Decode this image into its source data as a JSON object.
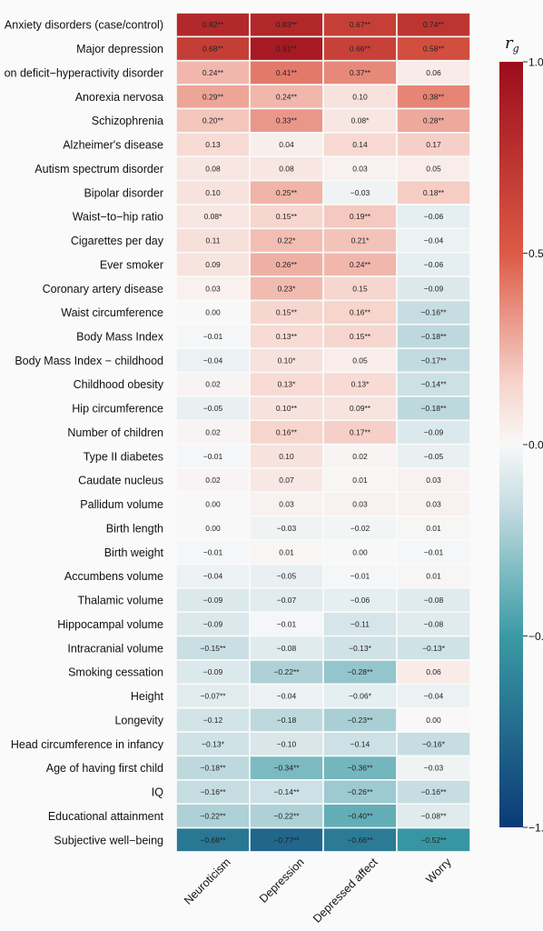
{
  "chart_data": {
    "type": "heatmap",
    "legend_title": "r",
    "legend_title_sub": "g",
    "legend_range": [
      -1,
      1
    ],
    "legend_ticks": [
      "1.0",
      "0.5",
      "0.0",
      "−0.",
      "−1."
    ],
    "columns": [
      "Neuroticism",
      "Depression",
      "Depressed affect",
      "Worry"
    ],
    "rows": [
      {
        "label": "Anxiety disorders (case/control)",
        "values": [
          0.82,
          0.83,
          0.67,
          0.74
        ],
        "text": [
          "0.82**",
          "0.83**",
          "0.67**",
          "0.74**"
        ]
      },
      {
        "label": "Major depression",
        "values": [
          0.68,
          0.91,
          0.66,
          0.58
        ],
        "text": [
          "0.68**",
          "0.91**",
          "0.66**",
          "0.58**"
        ]
      },
      {
        "label": "on deficit−hyperactivity disorder",
        "values": [
          0.24,
          0.41,
          0.37,
          0.06
        ],
        "text": [
          "0.24**",
          "0.41**",
          "0.37**",
          "0.06"
        ]
      },
      {
        "label": "Anorexia nervosa",
        "values": [
          0.29,
          0.24,
          0.1,
          0.38
        ],
        "text": [
          "0.29**",
          "0.24**",
          "0.10",
          "0.38**"
        ]
      },
      {
        "label": "Schizophrenia",
        "values": [
          0.2,
          0.33,
          0.08,
          0.28
        ],
        "text": [
          "0.20**",
          "0.33**",
          "0.08*",
          "0.28**"
        ]
      },
      {
        "label": "Alzheimer's disease",
        "values": [
          0.13,
          0.04,
          0.14,
          0.17
        ],
        "text": [
          "0.13",
          "0.04",
          "0.14",
          "0.17"
        ]
      },
      {
        "label": "Autism spectrum disorder",
        "values": [
          0.08,
          0.08,
          0.03,
          0.05
        ],
        "text": [
          "0.08",
          "0.08",
          "0.03",
          "0.05"
        ]
      },
      {
        "label": "Bipolar disorder",
        "values": [
          0.1,
          0.25,
          -0.03,
          0.18
        ],
        "text": [
          "0.10",
          "0.25**",
          "−0.03",
          "0.18**"
        ]
      },
      {
        "label": "Waist−to−hip ratio",
        "values": [
          0.08,
          0.15,
          0.19,
          -0.06
        ],
        "text": [
          "0.08*",
          "0.15**",
          "0.19**",
          "−0.06"
        ]
      },
      {
        "label": "Cigarettes per day",
        "values": [
          0.11,
          0.22,
          0.21,
          -0.04
        ],
        "text": [
          "0.11",
          "0.22*",
          "0.21*",
          "−0.04"
        ]
      },
      {
        "label": "Ever smoker",
        "values": [
          0.09,
          0.26,
          0.24,
          -0.06
        ],
        "text": [
          "0.09",
          "0.26**",
          "0.24**",
          "−0.06"
        ]
      },
      {
        "label": "Coronary artery disease",
        "values": [
          0.03,
          0.23,
          0.15,
          -0.09
        ],
        "text": [
          "0.03",
          "0.23*",
          "0.15",
          "−0.09"
        ]
      },
      {
        "label": "Waist circumference",
        "values": [
          0.0,
          0.15,
          0.16,
          -0.16
        ],
        "text": [
          "0.00",
          "0.15**",
          "0.16**",
          "−0.16**"
        ]
      },
      {
        "label": "Body Mass Index",
        "values": [
          -0.01,
          0.13,
          0.15,
          -0.18
        ],
        "text": [
          "−0.01",
          "0.13**",
          "0.15**",
          "−0.18**"
        ]
      },
      {
        "label": "Body Mass Index − childhood",
        "values": [
          -0.04,
          0.1,
          0.05,
          -0.17
        ],
        "text": [
          "−0.04",
          "0.10*",
          "0.05",
          "−0.17**"
        ]
      },
      {
        "label": "Childhood obesity",
        "values": [
          0.02,
          0.13,
          0.13,
          -0.14
        ],
        "text": [
          "0.02",
          "0.13*",
          "0.13*",
          "−0.14**"
        ]
      },
      {
        "label": "Hip circumference",
        "values": [
          -0.05,
          0.1,
          0.09,
          -0.18
        ],
        "text": [
          "−0.05",
          "0.10**",
          "0.09**",
          "−0.18**"
        ]
      },
      {
        "label": "Number of children",
        "values": [
          0.02,
          0.16,
          0.17,
          -0.09
        ],
        "text": [
          "0.02",
          "0.16**",
          "0.17**",
          "−0.09"
        ]
      },
      {
        "label": "Type II diabetes",
        "values": [
          -0.01,
          0.1,
          0.02,
          -0.05
        ],
        "text": [
          "−0.01",
          "0.10",
          "0.02",
          "−0.05"
        ]
      },
      {
        "label": "Caudate nucleus",
        "values": [
          0.02,
          0.07,
          0.01,
          0.03
        ],
        "text": [
          "0.02",
          "0.07",
          "0.01",
          "0.03"
        ]
      },
      {
        "label": "Pallidum volume",
        "values": [
          0.0,
          0.03,
          0.03,
          0.03
        ],
        "text": [
          "0.00",
          "0.03",
          "0.03",
          "0.03"
        ]
      },
      {
        "label": "Birth length",
        "values": [
          0.0,
          -0.03,
          -0.02,
          0.01
        ],
        "text": [
          "0.00",
          "−0.03",
          "−0.02",
          "0.01"
        ]
      },
      {
        "label": "Birth weight",
        "values": [
          -0.01,
          0.01,
          0.0,
          -0.01
        ],
        "text": [
          "−0.01",
          "0.01",
          "0.00",
          "−0.01"
        ]
      },
      {
        "label": "Accumbens volume",
        "values": [
          -0.04,
          -0.05,
          -0.01,
          0.01
        ],
        "text": [
          "−0.04",
          "−0.05",
          "−0.01",
          "0.01"
        ]
      },
      {
        "label": "Thalamic volume",
        "values": [
          -0.09,
          -0.07,
          -0.06,
          -0.08
        ],
        "text": [
          "−0.09",
          "−0.07",
          "−0.06",
          "−0.08"
        ]
      },
      {
        "label": "Hippocampal volume",
        "values": [
          -0.09,
          -0.01,
          -0.11,
          -0.08
        ],
        "text": [
          "−0.09",
          "−0.01",
          "−0.11",
          "−0.08"
        ]
      },
      {
        "label": "Intracranial volume",
        "values": [
          -0.15,
          -0.08,
          -0.13,
          -0.13
        ],
        "text": [
          "−0.15**",
          "−0.08",
          "−0.13*",
          "−0.13*"
        ]
      },
      {
        "label": "Smoking cessation",
        "values": [
          -0.09,
          -0.22,
          -0.28,
          0.06
        ],
        "text": [
          "−0.09",
          "−0.22**",
          "−0.28**",
          "0.06"
        ]
      },
      {
        "label": "Height",
        "values": [
          -0.07,
          -0.04,
          -0.06,
          -0.04
        ],
        "text": [
          "−0.07**",
          "−0.04",
          "−0.06*",
          "−0.04"
        ]
      },
      {
        "label": "Longevity",
        "values": [
          -0.12,
          -0.18,
          -0.23,
          0.0
        ],
        "text": [
          "−0.12",
          "−0.18",
          "−0.23**",
          "0.00"
        ]
      },
      {
        "label": "Head circumference in infancy",
        "values": [
          -0.13,
          -0.1,
          -0.14,
          -0.16
        ],
        "text": [
          "−0.13*",
          "−0.10",
          "−0.14",
          "−0.16*"
        ]
      },
      {
        "label": "Age of having first child",
        "values": [
          -0.18,
          -0.34,
          -0.36,
          -0.03
        ],
        "text": [
          "−0.18**",
          "−0.34**",
          "−0.36**",
          "−0.03"
        ]
      },
      {
        "label": "IQ",
        "values": [
          -0.16,
          -0.14,
          -0.26,
          -0.16
        ],
        "text": [
          "−0.16**",
          "−0.14**",
          "−0.26**",
          "−0.16**"
        ]
      },
      {
        "label": "Educational attainment",
        "values": [
          -0.22,
          -0.22,
          -0.4,
          -0.08
        ],
        "text": [
          "−0.22**",
          "−0.22**",
          "−0.40**",
          "−0.08**"
        ]
      },
      {
        "label": "Subjective well−being",
        "values": [
          -0.68,
          -0.77,
          -0.66,
          -0.52
        ],
        "text": [
          "−0.68**",
          "−0.77**",
          "−0.66**",
          "−0.52**"
        ]
      }
    ]
  }
}
